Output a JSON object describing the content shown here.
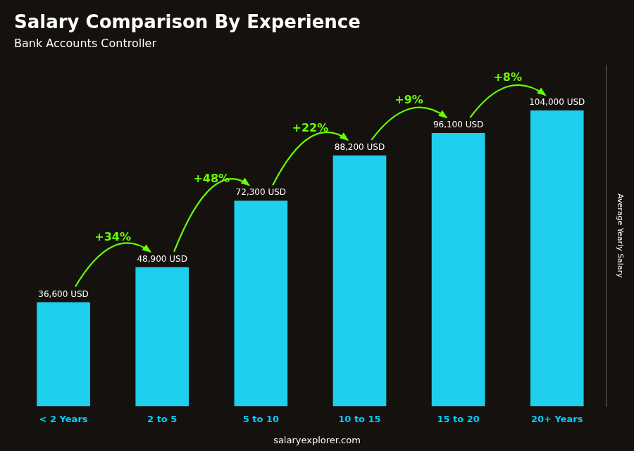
{
  "chart_data": {
    "type": "bar",
    "title": "Salary Comparison By Experience",
    "subtitle": "Bank Accounts Controller",
    "categories": [
      "< 2 Years",
      "2 to 5",
      "5 to 10",
      "10 to 15",
      "15 to 20",
      "20+ Years"
    ],
    "values": [
      36600,
      48900,
      72300,
      88200,
      96100,
      104000
    ],
    "value_labels": [
      "36,600 USD",
      "48,900 USD",
      "72,300 USD",
      "88,200 USD",
      "96,100 USD",
      "104,000 USD"
    ],
    "data_labels": true,
    "annotations": [
      "+34%",
      "+48%",
      "+22%",
      "+9%",
      "+8%"
    ],
    "ylabel": "Average Yearly Salary",
    "footer": "salaryexplorer.com",
    "color": "#1ecfee",
    "ylim": [
      0,
      120000
    ],
    "tick_labels": "x",
    "grid": false
  }
}
